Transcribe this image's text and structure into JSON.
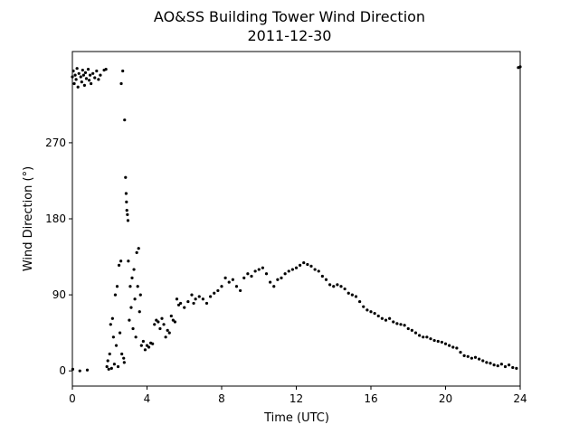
{
  "chart_data": {
    "type": "scatter",
    "title": "AO&SS Building Tower Wind Direction",
    "subtitle": "2011-12-30",
    "x_label": "Time (UTC)",
    "y_label": "Wind Direction (°)",
    "color": "#000000",
    "xlim": [
      0,
      24
    ],
    "xticks": [
      0,
      4,
      8,
      12,
      16,
      20,
      24
    ],
    "ylim": [
      -18,
      378
    ],
    "yticks": [
      0,
      90,
      180,
      270
    ],
    "grid": false,
    "x": [
      0.0,
      0.02,
      0.05,
      0.1,
      0.15,
      0.2,
      0.25,
      0.3,
      0.35,
      0.4,
      0.45,
      0.5,
      0.55,
      0.6,
      0.65,
      0.7,
      0.75,
      0.8,
      0.85,
      0.9,
      0.95,
      1.0,
      1.1,
      1.2,
      1.3,
      1.4,
      1.5,
      1.7,
      1.8,
      1.85,
      1.9,
      1.95,
      2.0,
      2.05,
      2.1,
      2.15,
      2.2,
      2.25,
      2.3,
      2.35,
      2.4,
      2.45,
      2.5,
      2.55,
      2.6,
      2.62,
      2.65,
      2.7,
      2.75,
      2.78,
      2.8,
      2.85,
      2.88,
      2.9,
      2.92,
      2.95,
      2.98,
      3.0,
      3.05,
      3.1,
      3.15,
      3.2,
      3.25,
      3.3,
      3.35,
      3.4,
      3.45,
      3.5,
      3.55,
      3.6,
      3.65,
      3.7,
      3.8,
      3.9,
      4.0,
      4.1,
      4.2,
      4.3,
      4.4,
      4.5,
      4.6,
      4.7,
      4.8,
      4.9,
      5.0,
      5.1,
      5.2,
      5.3,
      5.4,
      5.5,
      5.6,
      5.7,
      5.8,
      6.0,
      6.2,
      6.4,
      6.5,
      6.6,
      6.8,
      7.0,
      7.2,
      7.4,
      7.6,
      7.8,
      8.0,
      8.2,
      8.4,
      8.6,
      8.8,
      9.0,
      9.2,
      9.4,
      9.6,
      9.8,
      10.0,
      10.2,
      10.4,
      10.6,
      10.8,
      11.0,
      11.2,
      11.4,
      11.6,
      11.8,
      12.0,
      12.2,
      12.4,
      12.6,
      12.8,
      13.0,
      13.2,
      13.4,
      13.6,
      13.8,
      14.0,
      14.2,
      14.4,
      14.6,
      14.8,
      15.0,
      15.2,
      15.4,
      15.6,
      15.8,
      16.0,
      16.2,
      16.4,
      16.6,
      16.8,
      17.0,
      17.2,
      17.4,
      17.6,
      17.8,
      18.0,
      18.2,
      18.4,
      18.6,
      18.8,
      19.0,
      19.2,
      19.4,
      19.6,
      19.8,
      20.0,
      20.2,
      20.4,
      20.6,
      20.8,
      21.0,
      21.2,
      21.4,
      21.6,
      21.8,
      22.0,
      22.2,
      22.4,
      22.6,
      22.8,
      23.0,
      23.2,
      23.4,
      23.6,
      23.8,
      23.9,
      24.0
    ],
    "values": [
      348,
      2,
      355,
      340,
      350,
      345,
      358,
      336,
      352,
      0,
      348,
      342,
      356,
      350,
      338,
      353,
      346,
      1,
      357,
      344,
      350,
      340,
      352,
      347,
      355,
      345,
      350,
      356,
      357,
      5,
      12,
      2,
      20,
      55,
      3,
      62,
      40,
      8,
      90,
      30,
      100,
      5,
      125,
      45,
      130,
      340,
      20,
      355,
      15,
      10,
      297,
      229,
      210,
      200,
      190,
      185,
      178,
      130,
      60,
      100,
      75,
      110,
      50,
      120,
      85,
      40,
      140,
      100,
      145,
      70,
      90,
      30,
      35,
      25,
      30,
      28,
      33,
      32,
      55,
      60,
      58,
      50,
      62,
      55,
      40,
      48,
      45,
      65,
      60,
      58,
      85,
      78,
      80,
      75,
      82,
      90,
      80,
      85,
      88,
      85,
      80,
      88,
      92,
      95,
      100,
      110,
      105,
      108,
      100,
      95,
      110,
      115,
      112,
      118,
      120,
      122,
      115,
      105,
      100,
      108,
      110,
      115,
      118,
      120,
      122,
      125,
      128,
      126,
      124,
      120,
      118,
      112,
      108,
      102,
      100,
      102,
      100,
      97,
      92,
      90,
      88,
      82,
      76,
      72,
      70,
      68,
      65,
      62,
      60,
      62,
      58,
      56,
      55,
      54,
      50,
      48,
      45,
      42,
      40,
      40,
      38,
      36,
      35,
      34,
      32,
      30,
      28,
      27,
      22,
      18,
      17,
      15,
      16,
      14,
      12,
      10,
      9,
      7,
      6,
      8,
      5,
      7,
      4,
      3,
      359,
      360
    ]
  }
}
